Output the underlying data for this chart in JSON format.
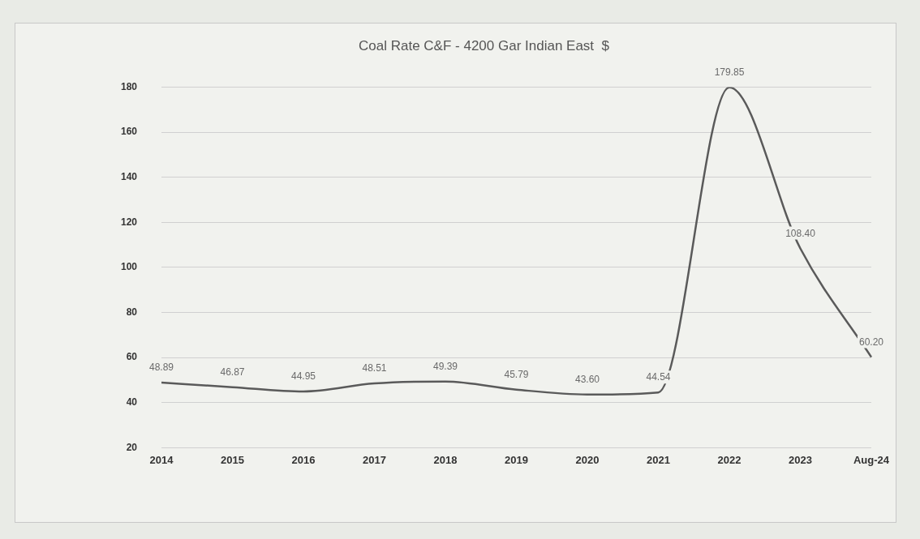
{
  "chart_data": {
    "type": "line",
    "title": "Coal Rate C&F - 4200 Gar Indian East  $",
    "categories": [
      "2014",
      "2015",
      "2016",
      "2017",
      "2018",
      "2019",
      "2020",
      "2021",
      "2022",
      "2023",
      "Aug-24"
    ],
    "series": [
      {
        "color": "#5a5a5a",
        "values": [
          48.89,
          46.87,
          44.95,
          48.51,
          49.39,
          45.79,
          43.6,
          44.54,
          179.85,
          108.4,
          60.2
        ],
        "value_labels": [
          "48.89",
          "46.87",
          "44.95",
          "48.51",
          "49.39",
          "45.79",
          "43.60",
          "44.54",
          "179.85",
          "108.40",
          "60.20"
        ]
      }
    ],
    "ylim": [
      20,
      180
    ],
    "yticks": [
      20,
      40,
      60,
      80,
      100,
      120,
      140,
      160,
      180
    ],
    "grid": "y",
    "legend": false,
    "marker": "none",
    "line_style": "solid"
  }
}
